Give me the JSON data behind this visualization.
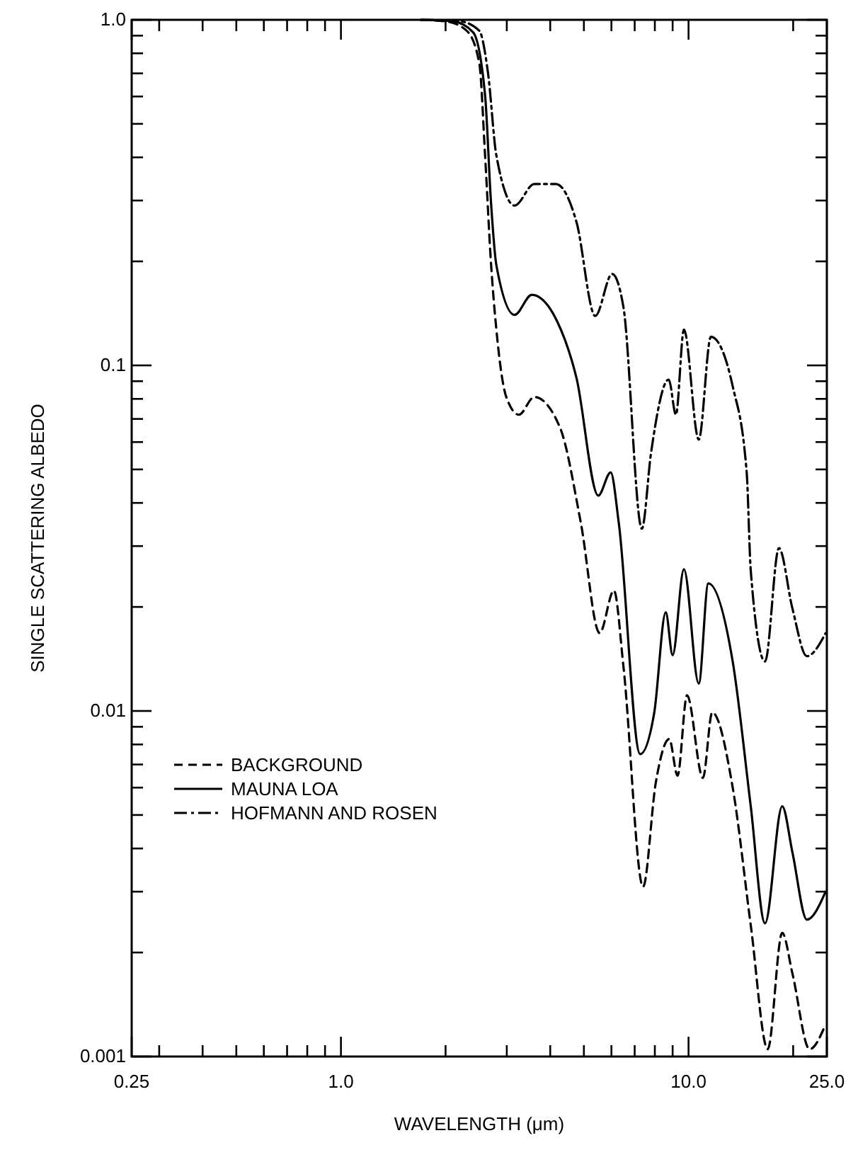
{
  "chart_data": {
    "type": "line",
    "xlabel": "WAVELENGTH (μm)",
    "ylabel": "SINGLE SCATTERING ALBEDO",
    "log": "xy",
    "xlim": [
      0.25,
      25
    ],
    "ylim": [
      0.001,
      1
    ],
    "xticks": [
      0.25,
      {
        "value": 0.3,
        "label": null
      },
      {
        "value": 0.4,
        "label": null
      },
      {
        "value": 0.5,
        "label": null
      },
      {
        "value": 0.6,
        "label": null
      },
      {
        "value": 0.7,
        "label": null
      },
      {
        "value": 0.8,
        "label": null
      },
      {
        "value": 0.9,
        "label": null
      },
      {
        "value": 1,
        "label": "1.0"
      },
      {
        "value": 2,
        "label": null
      },
      {
        "value": 3,
        "label": null
      },
      {
        "value": 4,
        "label": null
      },
      {
        "value": 5,
        "label": null
      },
      {
        "value": 6,
        "label": null
      },
      {
        "value": 7,
        "label": null
      },
      {
        "value": 8,
        "label": null
      },
      {
        "value": 9,
        "label": null
      },
      {
        "value": 10,
        "label": "10.0"
      },
      {
        "value": 20,
        "label": null
      },
      {
        "value": 25,
        "label": "25.0"
      }
    ],
    "yticks": [
      0.001,
      {
        "value": 0.002,
        "label": null
      },
      {
        "value": 0.003,
        "label": null
      },
      {
        "value": 0.004,
        "label": null
      },
      {
        "value": 0.005,
        "label": null
      },
      {
        "value": 0.006,
        "label": null
      },
      {
        "value": 0.007,
        "label": null
      },
      {
        "value": 0.008,
        "label": null
      },
      {
        "value": 0.009,
        "label": null
      },
      0.01,
      {
        "value": 0.02,
        "label": null
      },
      {
        "value": 0.03,
        "label": null
      },
      {
        "value": 0.04,
        "label": null
      },
      {
        "value": 0.05,
        "label": null
      },
      {
        "value": 0.06,
        "label": null
      },
      {
        "value": 0.07,
        "label": null
      },
      {
        "value": 0.08,
        "label": null
      },
      {
        "value": 0.09,
        "label": null
      },
      0.1,
      {
        "value": 0.2,
        "label": null
      },
      {
        "value": 0.3,
        "label": null
      },
      {
        "value": 0.4,
        "label": null
      },
      {
        "value": 0.5,
        "label": null
      },
      {
        "value": 0.6,
        "label": null
      },
      {
        "value": 0.7,
        "label": null
      },
      {
        "value": 0.8,
        "label": null
      },
      {
        "value": 0.9,
        "label": null
      },
      {
        "value": 1,
        "label": "1.0"
      }
    ],
    "grid": false,
    "legend": "left",
    "marker": "none",
    "series": [
      {
        "name": "BACKGROUND",
        "color": "#000000",
        "line_style": "dashed",
        "x": [
          1.7,
          2.0,
          2.3,
          2.5,
          2.6,
          2.7,
          2.8,
          2.99,
          3.25,
          3.6,
          4.27,
          4.9,
          5.55,
          6.1,
          6.5,
          7.4,
          8.05,
          8.8,
          9.3,
          9.9,
          11.0,
          11.7,
          13.4,
          15.1,
          16.9,
          18.6,
          19.9,
          22.3,
          24.8
        ],
        "values": [
          1,
          0.99,
          0.93,
          0.75,
          0.4,
          0.2,
          0.127,
          0.081,
          0.072,
          0.081,
          0.066,
          0.035,
          0.0168,
          0.0223,
          0.0134,
          0.0031,
          0.0062,
          0.0083,
          0.0065,
          0.0111,
          0.0064,
          0.0099,
          0.006,
          0.0024,
          0.00105,
          0.00228,
          0.00174,
          0.00105,
          0.00124
        ]
      },
      {
        "name": "MAUNA LOA",
        "color": "#000000",
        "line_style": "solid",
        "x": [
          1.7,
          2.1,
          2.4,
          2.6,
          2.7,
          2.8,
          3.16,
          3.54,
          4.19,
          4.76,
          5.5,
          5.97,
          6.3,
          7.26,
          7.97,
          8.6,
          9.0,
          9.7,
          10.7,
          11.4,
          13.4,
          15.1,
          16.6,
          18.6,
          19.9,
          21.9,
          24.8
        ],
        "values": [
          1,
          0.99,
          0.92,
          0.6,
          0.3,
          0.195,
          0.14,
          0.16,
          0.134,
          0.092,
          0.042,
          0.049,
          0.035,
          0.0075,
          0.0099,
          0.0193,
          0.0145,
          0.0257,
          0.012,
          0.0234,
          0.0139,
          0.0053,
          0.00243,
          0.0053,
          0.0039,
          0.00249,
          0.003
        ]
      },
      {
        "name": "HOFMANN AND ROSEN",
        "color": "#000000",
        "line_style": "dashdot",
        "x": [
          1.7,
          2.2,
          2.5,
          2.65,
          2.8,
          3.16,
          3.6,
          4.15,
          4.76,
          5.39,
          6.03,
          6.5,
          7.34,
          7.8,
          8.77,
          9.2,
          9.7,
          10.7,
          11.6,
          13.4,
          14.7,
          15.1,
          16.6,
          18.2,
          19.9,
          21.9,
          24.8
        ],
        "values": [
          1,
          0.99,
          0.93,
          0.7,
          0.405,
          0.29,
          0.335,
          0.335,
          0.26,
          0.139,
          0.184,
          0.147,
          0.0337,
          0.0558,
          0.091,
          0.072,
          0.127,
          0.061,
          0.121,
          0.087,
          0.049,
          0.0255,
          0.0139,
          0.0296,
          0.0198,
          0.0144,
          0.0168
        ]
      }
    ]
  }
}
